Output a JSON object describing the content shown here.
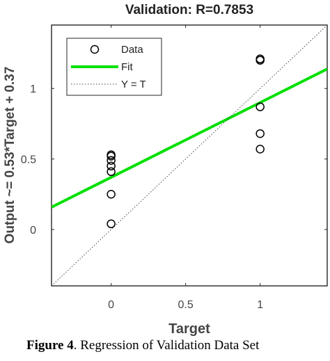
{
  "chart_data": {
    "type": "scatter",
    "title": "Validation: R=0.7853",
    "xlabel": "Target",
    "ylabel": "Output ~= 0.53*Target + 0.37",
    "xlim": [
      -0.4,
      1.45
    ],
    "ylim": [
      -0.4,
      1.45
    ],
    "xticks": [
      0,
      0.5,
      1
    ],
    "xtick_labels": [
      "0",
      "0.5",
      "1"
    ],
    "yticks": [
      0,
      0.5,
      1
    ],
    "ytick_labels": [
      "0",
      "0.5",
      "1"
    ],
    "grid": false,
    "legend_position": "top-left",
    "series": [
      {
        "name": "Data",
        "kind": "markers",
        "marker": "circle",
        "color": "#000000",
        "points": [
          [
            0,
            0.04
          ],
          [
            0,
            0.25
          ],
          [
            0,
            0.41
          ],
          [
            0,
            0.45
          ],
          [
            0,
            0.49
          ],
          [
            0,
            0.52
          ],
          [
            0,
            0.53
          ],
          [
            1,
            0.57
          ],
          [
            1,
            0.68
          ],
          [
            1,
            0.87
          ],
          [
            1,
            1.2
          ],
          [
            1,
            1.21
          ]
        ]
      },
      {
        "name": "Fit",
        "kind": "line",
        "slope": 0.53,
        "intercept": 0.37,
        "color": "#00e000"
      },
      {
        "name": "Y = T",
        "kind": "line",
        "slope": 1,
        "intercept": 0,
        "color": "#444444",
        "dash": "dotted"
      }
    ]
  },
  "caption": {
    "label": "Figure 4",
    "text": ". Regression of Validation Data Set"
  }
}
